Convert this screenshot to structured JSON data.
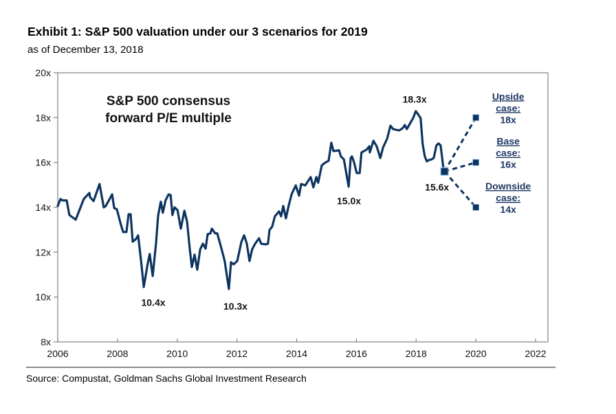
{
  "header": {
    "title": "Exhibit 1: S&P 500 valuation under our 3 scenarios for 2019",
    "subtitle": "as of December 13, 2018"
  },
  "footer": {
    "source": "Source: Compustat, Goldman Sachs Global Investment Research"
  },
  "colors": {
    "line": "#0d3460",
    "marker_outline": "#9dc3e6",
    "axis": "#8a8a8a",
    "scenario_text": "#1f3864"
  },
  "chart_data": {
    "type": "line",
    "title": "S&P 500 consensus forward P/E multiple",
    "inset_title_lines": [
      "S&P 500 consensus",
      "forward P/E multiple"
    ],
    "xlabel": "",
    "ylabel": "",
    "xlim": [
      2006,
      2022.4
    ],
    "ylim": [
      8,
      20
    ],
    "x_ticks": [
      2006,
      2008,
      2010,
      2012,
      2014,
      2016,
      2018,
      2020,
      2022
    ],
    "x_tick_labels": [
      "2006",
      "2008",
      "2010",
      "2012",
      "2014",
      "2016",
      "2018",
      "2020",
      "2022"
    ],
    "y_ticks": [
      8,
      10,
      12,
      14,
      16,
      18,
      20
    ],
    "y_tick_labels": [
      "8x",
      "10x",
      "12x",
      "14x",
      "16x",
      "18x",
      "20x"
    ],
    "grid": false,
    "series": [
      {
        "name": "S&P 500 consensus forward P/E",
        "x": [
          2006.0,
          2006.09,
          2006.16,
          2006.3,
          2006.39,
          2006.6,
          2006.78,
          2006.87,
          2007.06,
          2007.08,
          2007.2,
          2007.4,
          2007.54,
          2007.61,
          2007.82,
          2007.89,
          2007.98,
          2008.12,
          2008.19,
          2008.3,
          2008.37,
          2008.44,
          2008.51,
          2008.62,
          2008.69,
          2008.79,
          2008.88,
          2009.02,
          2009.08,
          2009.18,
          2009.29,
          2009.36,
          2009.45,
          2009.52,
          2009.61,
          2009.71,
          2009.78,
          2009.84,
          2009.91,
          2010.01,
          2010.12,
          2010.24,
          2010.33,
          2010.42,
          2010.49,
          2010.58,
          2010.67,
          2010.77,
          2010.86,
          2010.95,
          2011.02,
          2011.11,
          2011.16,
          2011.27,
          2011.34,
          2011.48,
          2011.59,
          2011.73,
          2011.8,
          2011.89,
          2012.01,
          2012.15,
          2012.24,
          2012.33,
          2012.42,
          2012.51,
          2012.61,
          2012.74,
          2012.81,
          2012.95,
          2013.04,
          2013.09,
          2013.18,
          2013.27,
          2013.41,
          2013.48,
          2013.55,
          2013.64,
          2013.73,
          2013.83,
          2013.97,
          2014.08,
          2014.15,
          2014.29,
          2014.47,
          2014.56,
          2014.66,
          2014.72,
          2014.84,
          2014.95,
          2015.07,
          2015.16,
          2015.23,
          2015.42,
          2015.48,
          2015.58,
          2015.74,
          2015.81,
          2015.85,
          2015.92,
          2016.01,
          2016.11,
          2016.17,
          2016.34,
          2016.43,
          2016.45,
          2016.57,
          2016.68,
          2016.8,
          2016.89,
          2017.03,
          2017.14,
          2017.23,
          2017.42,
          2017.51,
          2017.58,
          2017.62,
          2017.69,
          2017.79,
          2017.9,
          2017.99,
          2018.09,
          2018.15,
          2018.22,
          2018.29,
          2018.36,
          2018.43,
          2018.52,
          2018.59,
          2018.68,
          2018.75,
          2018.82,
          2018.93
        ],
        "values": [
          14.06,
          14.37,
          14.31,
          14.31,
          13.66,
          13.45,
          14.06,
          14.37,
          14.64,
          14.46,
          14.28,
          15.04,
          14.0,
          14.06,
          14.58,
          13.97,
          13.91,
          13.2,
          12.9,
          12.9,
          13.69,
          13.69,
          12.47,
          12.59,
          12.75,
          11.61,
          10.45,
          11.55,
          11.92,
          10.94,
          12.38,
          13.63,
          14.25,
          13.76,
          14.31,
          14.58,
          14.55,
          13.66,
          14.0,
          13.88,
          13.05,
          13.85,
          13.36,
          12.16,
          11.34,
          11.89,
          11.22,
          12.13,
          12.38,
          12.16,
          12.81,
          12.84,
          13.05,
          12.84,
          12.84,
          12.16,
          11.61,
          10.36,
          11.55,
          11.46,
          11.61,
          12.47,
          12.75,
          12.38,
          11.61,
          12.13,
          12.38,
          12.62,
          12.38,
          12.35,
          12.38,
          12.99,
          13.14,
          13.6,
          13.82,
          13.6,
          14.06,
          13.51,
          14.06,
          14.58,
          14.98,
          14.52,
          15.04,
          14.98,
          15.35,
          14.89,
          15.35,
          15.1,
          15.87,
          15.99,
          16.08,
          16.88,
          16.51,
          16.54,
          16.27,
          16.14,
          14.92,
          16.2,
          16.27,
          16.02,
          15.53,
          15.53,
          16.45,
          16.57,
          16.72,
          16.45,
          16.97,
          16.72,
          16.2,
          16.66,
          17.06,
          17.64,
          17.49,
          17.43,
          17.49,
          17.58,
          17.67,
          17.49,
          17.73,
          17.98,
          18.29,
          18.1,
          17.98,
          16.82,
          16.27,
          16.05,
          16.11,
          16.14,
          16.2,
          16.76,
          16.85,
          16.76,
          15.55
        ]
      }
    ],
    "scenarios": {
      "start": {
        "x": 2018.95,
        "value": 15.6
      },
      "cases": [
        {
          "name": "Upside",
          "label_line1": "Upside",
          "label_line2": "case:",
          "value_label": "18x",
          "x": 2020,
          "value": 18
        },
        {
          "name": "Base",
          "label_line1": "Base",
          "label_line2": "case:",
          "value_label": "16x",
          "x": 2020,
          "value": 16
        },
        {
          "name": "Downside",
          "label_line1": "Downside",
          "label_line2": "case:",
          "value_label": "14x",
          "x": 2020,
          "value": 14
        }
      ]
    },
    "annotations": [
      {
        "text": "10.4x",
        "x": 2009.2,
        "value": 10.4
      },
      {
        "text": "10.3x",
        "x": 2011.95,
        "value": 10.3
      },
      {
        "text": "15.0x",
        "x": 2015.75,
        "value": 15.0
      },
      {
        "text": "18.3x",
        "x": 2017.95,
        "value": 18.3
      },
      {
        "text": "15.6x",
        "x": 2018.7,
        "value": 15.6
      }
    ]
  }
}
